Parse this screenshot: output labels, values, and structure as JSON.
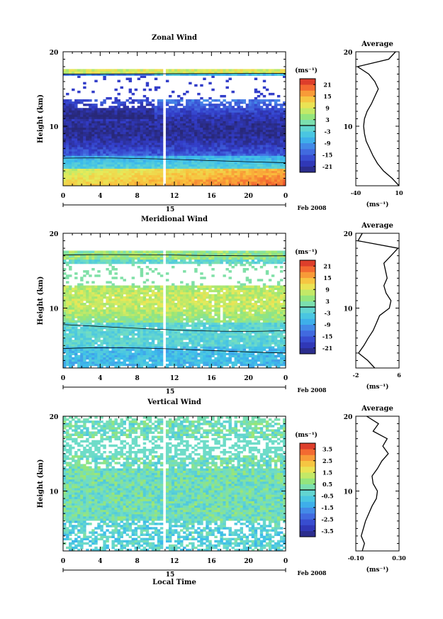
{
  "common": {
    "time_ticks": [
      "0",
      "4",
      "8",
      "12",
      "16",
      "20",
      "0"
    ],
    "date_day": "15",
    "date_label": "Feb 2008",
    "ylabel": "Height (km)",
    "height_ticks": [
      "20",
      "10"
    ],
    "colorbar_unit": "(ms⁻¹)",
    "avg_title": "Average",
    "avg_unit": "(ms⁻¹)",
    "xlabel_time": "Local Time"
  },
  "chart_data": [
    {
      "type": "heatmap",
      "title": "Zonal Wind",
      "xlabel": "",
      "ylabel": "Height (km)",
      "x_range": [
        0,
        24
      ],
      "y_range": [
        2,
        20
      ],
      "colorbar_ticks": [
        "21",
        "15",
        "9",
        "3",
        "-3",
        "-9",
        "-15",
        "-21"
      ],
      "colorbar_range": [
        -24,
        24
      ],
      "profile": {
        "title": "Average",
        "x_ticks": [
          "-40",
          "10"
        ],
        "x_range": [
          -40,
          10
        ],
        "heights": [
          2,
          3,
          4,
          5,
          6,
          7,
          8,
          9,
          10,
          11,
          12,
          13,
          14,
          15,
          16,
          17,
          18,
          19,
          20
        ],
        "values": [
          10,
          2,
          -8,
          -15,
          -20,
          -24,
          -28,
          -30,
          -31,
          -30,
          -27,
          -22,
          -18,
          -14,
          -18,
          -25,
          -38,
          -2,
          6
        ]
      }
    },
    {
      "type": "heatmap",
      "title": "Meridional Wind",
      "xlabel": "",
      "ylabel": "Height (km)",
      "x_range": [
        0,
        24
      ],
      "y_range": [
        2,
        20
      ],
      "colorbar_ticks": [
        "21",
        "15",
        "9",
        "3",
        "-3",
        "-9",
        "-15",
        "-21"
      ],
      "colorbar_range": [
        -24,
        24
      ],
      "profile": {
        "title": "Average",
        "x_ticks": [
          "-2",
          "6"
        ],
        "x_range": [
          -2,
          6
        ],
        "heights": [
          2,
          3,
          4,
          5,
          6,
          7,
          8,
          9,
          10,
          11,
          12,
          13,
          14,
          15,
          16,
          17,
          18,
          19,
          20
        ],
        "values": [
          1.5,
          0.2,
          -1.5,
          -0.5,
          0.3,
          1.2,
          1.8,
          2.4,
          4.2,
          4.5,
          3.6,
          3.2,
          3.8,
          3.5,
          3.2,
          4.5,
          5.8,
          -1.6,
          -0.8
        ]
      }
    },
    {
      "type": "heatmap",
      "title": "Vertical Wind",
      "xlabel": "Local Time",
      "ylabel": "Height (km)",
      "x_range": [
        0,
        24
      ],
      "y_range": [
        2,
        20
      ],
      "colorbar_ticks": [
        "3.5",
        "2.5",
        "1.5",
        "0.5",
        "-0.5",
        "-1.5",
        "-2.5",
        "-3.5"
      ],
      "colorbar_range": [
        -4,
        4
      ],
      "profile": {
        "title": "Average",
        "x_ticks": [
          "-0.10",
          "0.30"
        ],
        "x_range": [
          -0.1,
          0.3
        ],
        "heights": [
          2,
          3,
          4,
          5,
          6,
          7,
          8,
          9,
          10,
          11,
          12,
          13,
          14,
          15,
          16,
          17,
          18,
          19,
          20
        ],
        "values": [
          -0.04,
          -0.02,
          -0.05,
          -0.03,
          -0.01,
          0.02,
          0.05,
          0.09,
          0.1,
          0.06,
          0.05,
          0.1,
          0.14,
          0.2,
          0.15,
          0.19,
          0.06,
          0.11,
          0.0
        ]
      }
    }
  ]
}
